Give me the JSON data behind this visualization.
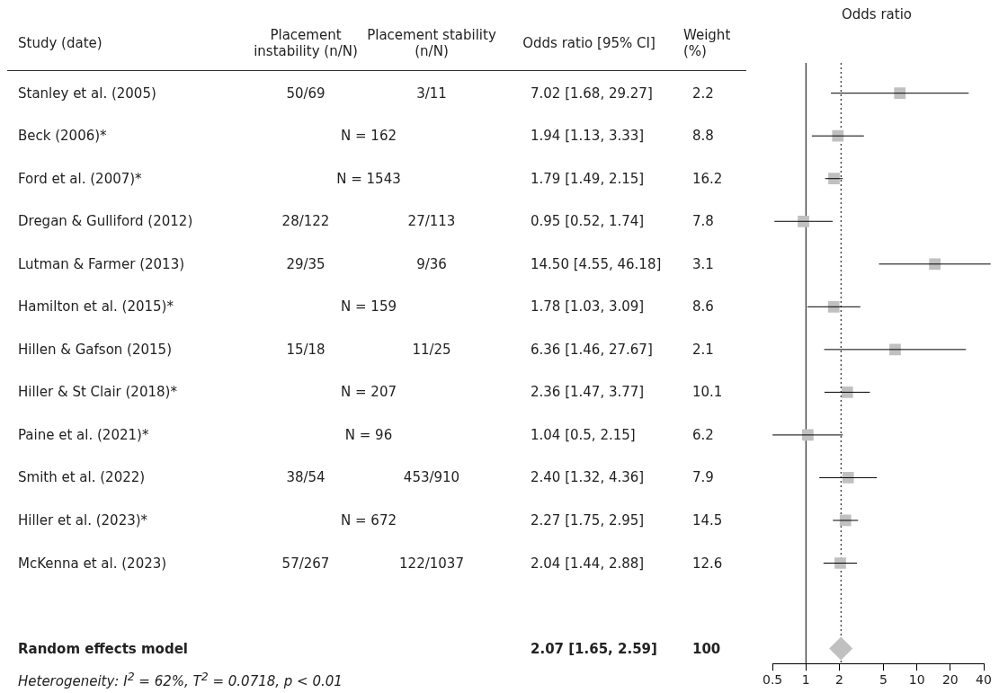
{
  "chart_data": [
    {
      "type": "other",
      "categories": [
        "Study (date)",
        "Placement instability (n/N)",
        "Placement stability (n/N)",
        "Odds ratio [95% CI]",
        "Weight (%)"
      ],
      "cell_labels": [
        [
          "Stanley et al. (2005)",
          "50/69",
          "3/11",
          "7.02 [1.68, 29.27]",
          "2.2"
        ],
        [
          "Beck (2006)*",
          "N = 162",
          null,
          "1.94 [1.13, 3.33]",
          "8.8"
        ],
        [
          "Ford et al. (2007)*",
          "N = 1543",
          null,
          "1.79 [1.49, 2.15]",
          "16.2"
        ],
        [
          "Dregan & Gulliford (2012)",
          "28/122",
          "27/113",
          "0.95 [0.52, 1.74]",
          "7.8"
        ],
        [
          "Lutman & Farmer (2013)",
          "29/35",
          "9/36",
          "14.50 [4.55, 46.18]",
          "3.1"
        ],
        [
          "Hamilton et al. (2015)*",
          "N = 159",
          null,
          "1.78 [1.03, 3.09]",
          "8.6"
        ],
        [
          "Hillen & Gafson (2015)",
          "15/18",
          "11/25",
          "6.36 [1.46, 27.67]",
          "2.1"
        ],
        [
          "Hiller & St Clair (2018)*",
          "N = 207",
          null,
          "2.36 [1.47, 3.77]",
          "10.1"
        ],
        [
          "Paine et al. (2021)*",
          "N = 96",
          null,
          "1.04 [0.5, 2.15]",
          "6.2"
        ],
        [
          "Smith et al. (2022)",
          "38/54",
          "453/910",
          "2.40 [1.32, 4.36]",
          "7.9"
        ],
        [
          "Hiller et al. (2023)*",
          "N = 672",
          null,
          "2.27 [1.75, 2.95]",
          "14.5"
        ],
        [
          "McKenna et al. (2023)",
          "57/267",
          "122/1037",
          "2.04 [1.44, 2.88]",
          "12.6"
        ],
        [
          null,
          null,
          null,
          null,
          null
        ],
        [
          "Random effects model",
          null,
          null,
          "2.07 [1.65, 2.59]",
          "100"
        ]
      ],
      "annotations": [
        "Heterogeneity: I$^{2}$ = 62%, T$^{2}$ = 0.0718, p < 0.01"
      ]
    },
    {
      "type": "scatter",
      "title": "Odds ratio",
      "orientation": "horizontal",
      "categories": [
        null,
        null,
        null,
        null,
        null,
        null,
        null,
        null,
        null,
        null,
        null,
        null,
        null,
        null
      ],
      "series": [
        {
          "color": "#c0c0c0",
          "marker": "square",
          "values": [
            7.02,
            1.94,
            1.79,
            0.95,
            14.5,
            1.78,
            6.36,
            2.36,
            1.04,
            2.4,
            2.27,
            2.04,
            null,
            null
          ],
          "errors": [
            [
              1.68,
              29.27
            ],
            [
              1.13,
              3.33
            ],
            [
              1.49,
              2.15
            ],
            [
              0.52,
              1.74
            ],
            [
              4.55,
              46.18
            ],
            [
              1.03,
              3.09
            ],
            [
              1.46,
              27.67
            ],
            [
              1.47,
              3.77
            ],
            [
              0.5,
              2.15
            ],
            [
              1.32,
              4.36
            ],
            [
              1.75,
              2.95
            ],
            [
              1.44,
              2.88
            ],
            null,
            null
          ]
        },
        {
          "color": "#c0c0c0",
          "marker": "diamond",
          "values": [
            null,
            null,
            null,
            null,
            null,
            null,
            null,
            null,
            null,
            null,
            null,
            null,
            null,
            2.07
          ]
        }
      ],
      "log": "x",
      "xlim": [
        0.5,
        40
      ],
      "xticks": [
        0.5,
        1,
        2,
        5,
        10,
        20,
        40
      ],
      "ref_lines": [
        {
          "axis": "x",
          "value": 1,
          "color": "#000000",
          "line_style": "solid"
        },
        {
          "axis": "x",
          "value": 2.07,
          "color": "#000000",
          "line_style": "dotted"
        }
      ],
      "grid": false,
      "legend": false,
      "tick_labels": "x"
    }
  ]
}
